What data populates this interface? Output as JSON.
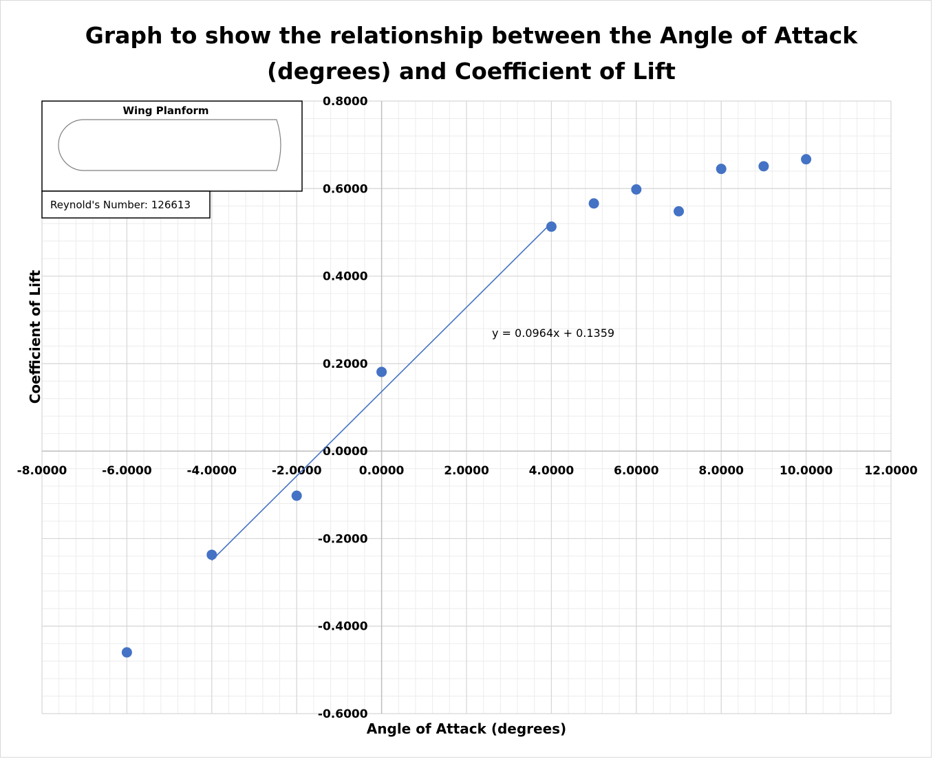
{
  "chart_data": {
    "type": "scatter",
    "title": "Graph to show the relationship between the Angle of Attack (degrees) and Coefficient of Lift",
    "title_lines": [
      "Graph to show the relationship between the Angle of Attack",
      "(degrees) and Coefficient of Lift"
    ],
    "xlabel": "Angle of Attack (degrees)",
    "ylabel": "Coefficient of Lift",
    "xlim": [
      -8,
      12
    ],
    "ylim": [
      -0.6,
      0.8
    ],
    "x_ticks": [
      "-8.0000",
      "-6.0000",
      "-4.0000",
      "-2.0000",
      "0.0000",
      "2.0000",
      "4.0000",
      "6.0000",
      "8.0000",
      "10.0000",
      "12.0000"
    ],
    "y_ticks": [
      "-0.6000",
      "-0.4000",
      "-0.2000",
      "0.0000",
      "0.2000",
      "0.4000",
      "0.6000",
      "0.8000"
    ],
    "x_major_step": 2,
    "y_major_step": 0.2,
    "grid": true,
    "marker_color": "#4472c4",
    "points": [
      {
        "x": -6,
        "y": -0.46
      },
      {
        "x": -4,
        "y": -0.237
      },
      {
        "x": -2,
        "y": -0.102
      },
      {
        "x": 0,
        "y": 0.181
      },
      {
        "x": 4,
        "y": 0.513
      },
      {
        "x": 5,
        "y": 0.566
      },
      {
        "x": 6,
        "y": 0.598
      },
      {
        "x": 7,
        "y": 0.548
      },
      {
        "x": 8,
        "y": 0.645
      },
      {
        "x": 9,
        "y": 0.651
      },
      {
        "x": 10,
        "y": 0.667
      }
    ],
    "trendline": {
      "slope": 0.0964,
      "intercept": 0.1359,
      "x_range": [
        -4,
        4
      ],
      "color": "#4472c4",
      "equation_label": "y = 0.0964x + 0.1359"
    }
  },
  "inset": {
    "title": "Wing Planform",
    "reynolds_label": "Reynold's Number: 126613"
  }
}
